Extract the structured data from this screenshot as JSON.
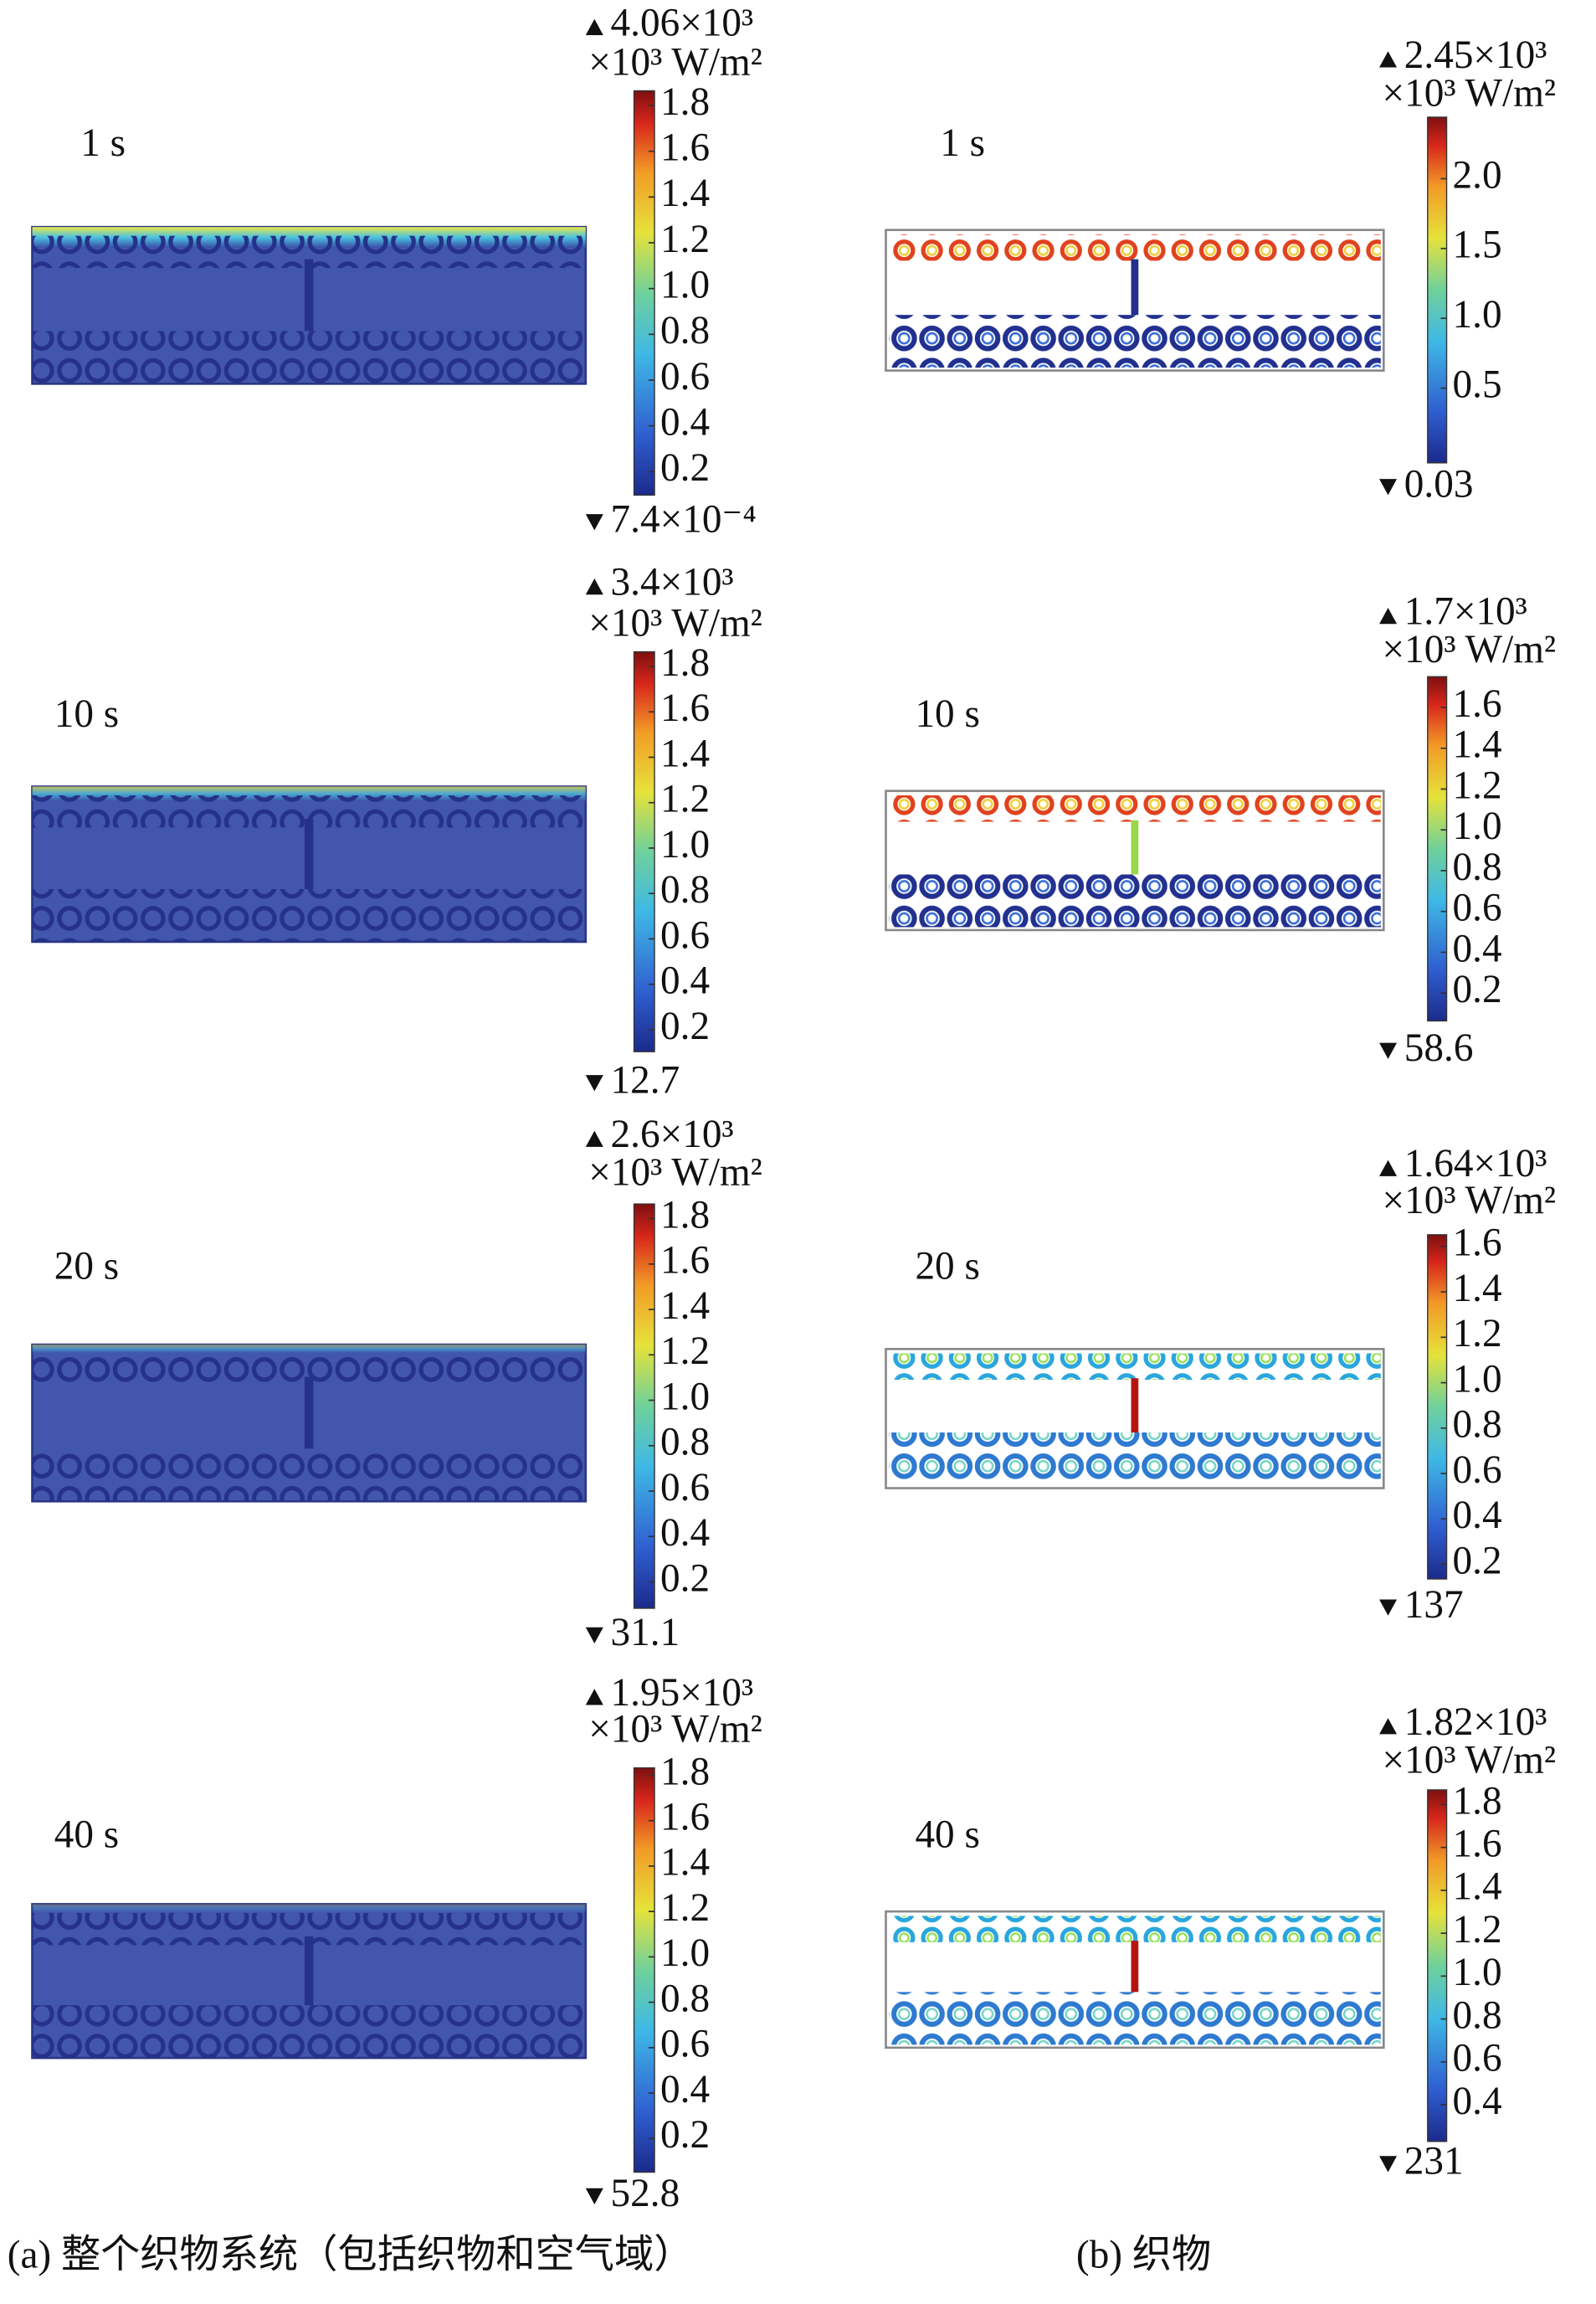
{
  "panels": {
    "a": [
      {
        "time": "1 s",
        "max": "4.06×10³",
        "unit": "×10³ W/m²",
        "ticks": [
          "0.2",
          "0.4",
          "0.6",
          "0.8",
          "1.0",
          "1.2",
          "1.4",
          "1.6",
          "1.8"
        ],
        "min": "7.4×10⁻⁴"
      },
      {
        "time": "10 s",
        "max": "3.4×10³",
        "unit": "×10³ W/m²",
        "ticks": [
          "0.2",
          "0.4",
          "0.6",
          "0.8",
          "1.0",
          "1.2",
          "1.4",
          "1.6",
          "1.8"
        ],
        "min": "12.7"
      },
      {
        "time": "20 s",
        "max": "2.6×10³",
        "unit": "×10³ W/m²",
        "ticks": [
          "0.2",
          "0.4",
          "0.6",
          "0.8",
          "1.0",
          "1.2",
          "1.4",
          "1.6",
          "1.8"
        ],
        "min": "31.1"
      },
      {
        "time": "40 s",
        "max": "1.95×10³",
        "unit": "×10³ W/m²",
        "ticks": [
          "0.2",
          "0.4",
          "0.6",
          "0.8",
          "1.0",
          "1.2",
          "1.4",
          "1.6",
          "1.8"
        ],
        "min": "52.8"
      }
    ],
    "b": [
      {
        "time": "1 s",
        "max": "2.45×10³",
        "unit": "×10³ W/m²",
        "ticks": [
          "0.5",
          "1.0",
          "1.5",
          "2.0"
        ],
        "min": "0.03"
      },
      {
        "time": "10 s",
        "max": "1.7×10³",
        "unit": "×10³ W/m²",
        "ticks": [
          "0.2",
          "0.4",
          "0.6",
          "0.8",
          "1.0",
          "1.2",
          "1.4",
          "1.6"
        ],
        "min": "58.6"
      },
      {
        "time": "20 s",
        "max": "1.64×10³",
        "unit": "×10³ W/m²",
        "ticks": [
          "0.2",
          "0.4",
          "0.6",
          "0.8",
          "1.0",
          "1.2",
          "1.4",
          "1.6"
        ],
        "min": "137"
      },
      {
        "time": "40 s",
        "max": "1.82×10³",
        "unit": "×10³ W/m²",
        "ticks": [
          "0.4",
          "0.6",
          "0.8",
          "1.0",
          "1.2",
          "1.4",
          "1.6",
          "1.8"
        ],
        "min": "231"
      }
    ]
  },
  "captions": {
    "a": "(a) 整个织物系统（包括织物和空气域）",
    "b": "(b) 织物"
  }
}
